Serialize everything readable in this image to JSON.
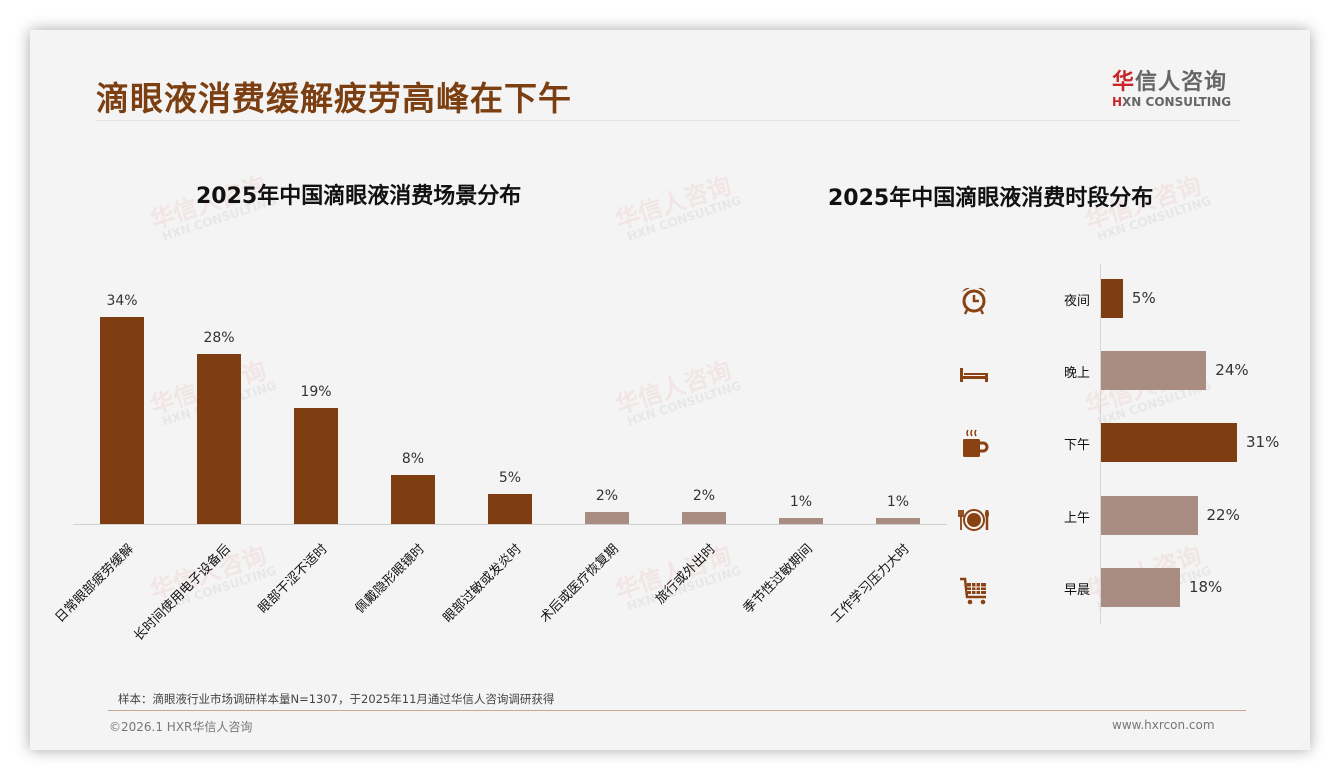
{
  "header": {
    "title": "滴眼液消费缓解疲劳高峰在下午",
    "logo_cn_first": "华",
    "logo_cn_rest": "信人咨询",
    "logo_en_first": "H",
    "logo_en_rest": "XN CONSULTING"
  },
  "watermark": {
    "cn": "华信人咨询",
    "en": "HXN CONSULTING"
  },
  "colors": {
    "primary_brown": "#7f3d12",
    "muted_brown": "#a98c82",
    "title_brown": "#7b3f12",
    "logo_red": "#c8262b"
  },
  "chart_data": [
    {
      "type": "bar",
      "title": "2025年中国滴眼液消费场景分布",
      "categories": [
        "日常眼部疲劳缓解",
        "长时间使用电子设备后",
        "眼部干涩不适时",
        "佩戴隐形眼镜时",
        "眼部过敏或发炎时",
        "术后或医疗恢复期",
        "旅行或外出时",
        "季节性过敏期间",
        "工作学习压力大时"
      ],
      "values": [
        34,
        28,
        19,
        8,
        5,
        2,
        2,
        1,
        1
      ],
      "value_labels": [
        "34%",
        "28%",
        "19%",
        "8%",
        "5%",
        "2%",
        "2%",
        "1%",
        "1%"
      ],
      "highlight": [
        true,
        true,
        true,
        true,
        true,
        false,
        false,
        false,
        false
      ],
      "xlabel": "",
      "ylabel": "",
      "unit": "%",
      "grid": false,
      "legend": "none"
    },
    {
      "type": "bar",
      "orientation": "horizontal",
      "title": "2025年中国滴眼液消费时段分布",
      "categories": [
        "夜间",
        "晚上",
        "下午",
        "上午",
        "早晨"
      ],
      "values": [
        5,
        24,
        31,
        22,
        18
      ],
      "value_labels": [
        "5%",
        "24%",
        "31%",
        "22%",
        "18%"
      ],
      "icons": [
        "alarm-clock-icon",
        "bed-icon",
        "coffee-cup-icon",
        "plate-cutlery-icon",
        "shopping-cart-icon"
      ],
      "highlight": [
        true,
        false,
        true,
        false,
        false
      ],
      "xlabel": "",
      "ylabel": "",
      "unit": "%",
      "grid": false,
      "legend": "none"
    }
  ],
  "footer": {
    "note": "样本：滴眼液行业市场调研样本量N=1307，于2025年11月通过华信人咨询调研获得",
    "copyright": "©2026.1 HXR华信人咨询",
    "website": "www.hxrcon.com"
  }
}
